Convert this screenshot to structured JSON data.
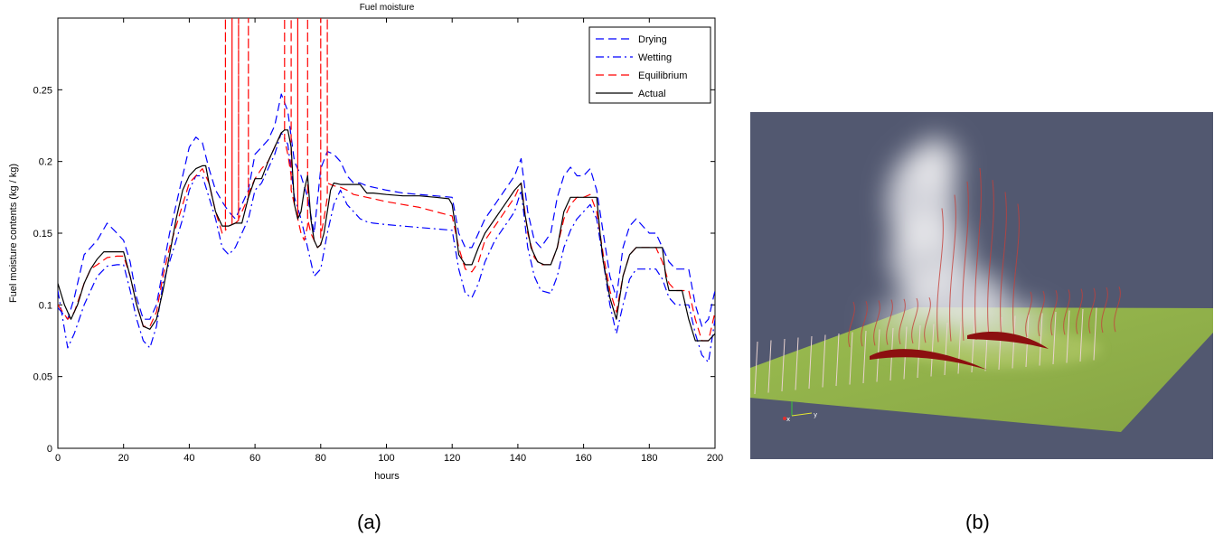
{
  "figure": {
    "panel_a_label": "(a)",
    "panel_b_label": "(b)",
    "axis_triad": {
      "x_label": "x",
      "y_label": "y"
    }
  },
  "colors": {
    "drying": "#0000ff",
    "wetting": "#0000ff",
    "equilibrium": "#ff0000",
    "actual": "#000000",
    "scene_background": "#525870",
    "terrain": "#93b24a",
    "streamline": "#e9b7b0",
    "fire_front": "#8c1010"
  },
  "chart_data": {
    "type": "line",
    "title": "Fuel moisture",
    "xlabel": "hours",
    "ylabel": "Fuel moisture contents (kg / kg)",
    "xlim": [
      0,
      200
    ],
    "ylim": [
      0,
      0.3
    ],
    "xticks": [
      0,
      20,
      40,
      60,
      80,
      100,
      120,
      140,
      160,
      180,
      200
    ],
    "yticks": [
      0,
      0.05,
      0.1,
      0.15,
      0.2,
      0.25
    ],
    "xtick_labels": [
      "0",
      "20",
      "40",
      "60",
      "80",
      "100",
      "120",
      "140",
      "160",
      "180",
      "200"
    ],
    "ytick_labels": [
      "0",
      "0.05",
      "0.1",
      "0.15",
      "0.2",
      "0.25"
    ],
    "grid": false,
    "legend_position": "top-right",
    "series": [
      {
        "name": "Drying",
        "style": "dashed",
        "color": "#0000ff",
        "x": [
          0,
          3,
          5,
          8,
          10,
          12,
          15,
          18,
          20,
          22,
          24,
          26,
          28,
          30,
          32,
          34,
          36,
          38,
          40,
          42,
          44,
          46,
          48,
          50,
          52,
          54,
          56,
          58,
          60,
          62,
          64,
          66,
          68,
          70,
          72,
          74,
          76,
          78,
          80,
          82,
          84,
          86,
          88,
          90,
          92,
          94,
          96,
          100,
          105,
          110,
          115,
          120,
          122,
          124,
          126,
          128,
          130,
          133,
          136,
          139,
          141,
          143,
          145,
          147,
          150,
          152,
          154,
          156,
          158,
          160,
          162,
          164,
          166,
          168,
          170,
          172,
          174,
          176,
          178,
          180,
          182,
          184,
          186,
          188,
          190,
          192,
          194,
          196,
          198,
          200
        ],
        "y": [
          0.098,
          0.09,
          0.105,
          0.135,
          0.14,
          0.145,
          0.157,
          0.15,
          0.145,
          0.13,
          0.105,
          0.09,
          0.09,
          0.1,
          0.125,
          0.15,
          0.17,
          0.19,
          0.21,
          0.217,
          0.213,
          0.195,
          0.18,
          0.172,
          0.165,
          0.16,
          0.17,
          0.18,
          0.205,
          0.21,
          0.215,
          0.225,
          0.247,
          0.235,
          0.2,
          0.19,
          0.175,
          0.15,
          0.195,
          0.207,
          0.205,
          0.2,
          0.19,
          0.185,
          0.185,
          0.183,
          0.182,
          0.18,
          0.178,
          0.177,
          0.176,
          0.175,
          0.15,
          0.14,
          0.14,
          0.15,
          0.16,
          0.17,
          0.18,
          0.19,
          0.202,
          0.165,
          0.145,
          0.14,
          0.15,
          0.175,
          0.19,
          0.196,
          0.19,
          0.19,
          0.195,
          0.18,
          0.15,
          0.12,
          0.105,
          0.14,
          0.155,
          0.16,
          0.155,
          0.15,
          0.15,
          0.14,
          0.13,
          0.125,
          0.125,
          0.125,
          0.1,
          0.085,
          0.09,
          0.11
        ]
      },
      {
        "name": "Wetting",
        "style": "dashdot",
        "color": "#0000ff",
        "x": [
          0,
          3,
          5,
          8,
          10,
          12,
          15,
          18,
          20,
          22,
          24,
          26,
          28,
          30,
          32,
          34,
          36,
          38,
          40,
          42,
          44,
          46,
          48,
          50,
          52,
          54,
          56,
          58,
          60,
          62,
          64,
          66,
          68,
          70,
          72,
          74,
          76,
          78,
          80,
          82,
          84,
          86,
          88,
          90,
          92,
          94,
          96,
          100,
          105,
          110,
          115,
          120,
          122,
          124,
          126,
          128,
          130,
          133,
          136,
          139,
          141,
          143,
          145,
          147,
          150,
          152,
          154,
          156,
          158,
          160,
          162,
          164,
          166,
          168,
          170,
          172,
          174,
          176,
          178,
          180,
          182,
          184,
          186,
          188,
          190,
          192,
          194,
          196,
          198,
          200
        ],
        "y": [
          0.11,
          0.07,
          0.08,
          0.1,
          0.11,
          0.12,
          0.127,
          0.128,
          0.128,
          0.11,
          0.09,
          0.075,
          0.07,
          0.085,
          0.115,
          0.13,
          0.145,
          0.16,
          0.18,
          0.19,
          0.19,
          0.175,
          0.16,
          0.14,
          0.135,
          0.14,
          0.15,
          0.16,
          0.18,
          0.185,
          0.195,
          0.205,
          0.22,
          0.212,
          0.175,
          0.16,
          0.14,
          0.12,
          0.125,
          0.15,
          0.17,
          0.18,
          0.17,
          0.165,
          0.16,
          0.158,
          0.157,
          0.156,
          0.155,
          0.154,
          0.153,
          0.152,
          0.125,
          0.108,
          0.105,
          0.115,
          0.13,
          0.145,
          0.155,
          0.165,
          0.18,
          0.14,
          0.12,
          0.11,
          0.108,
          0.12,
          0.14,
          0.152,
          0.16,
          0.165,
          0.17,
          0.16,
          0.13,
          0.1,
          0.08,
          0.1,
          0.118,
          0.125,
          0.125,
          0.125,
          0.125,
          0.118,
          0.105,
          0.1,
          0.1,
          0.1,
          0.08,
          0.065,
          0.06,
          0.09
        ]
      },
      {
        "name": "Equilibrium",
        "style": "dashed",
        "color": "#ff0000",
        "x": [
          0,
          3,
          5,
          8,
          10,
          12,
          15,
          18,
          20,
          22,
          24,
          26,
          28,
          30,
          32,
          34,
          36,
          38,
          40,
          42,
          44,
          46,
          48,
          50,
          51,
          51,
          51,
          52,
          53,
          53,
          53,
          54,
          55,
          55,
          55,
          56,
          58,
          58,
          58,
          60,
          62,
          64,
          66,
          68,
          69,
          69,
          69,
          70,
          71,
          71,
          71,
          72,
          73,
          73,
          73,
          74,
          75,
          76,
          76,
          76,
          77,
          78,
          79,
          80,
          80,
          80,
          81,
          82,
          82,
          82,
          83,
          84,
          86,
          88,
          90,
          92,
          94,
          96,
          100,
          105,
          110,
          115,
          120,
          122,
          124,
          126,
          128,
          130,
          133,
          136,
          139,
          141,
          143,
          145,
          147,
          150,
          152,
          154,
          156,
          158,
          160,
          162,
          164,
          166,
          168,
          170,
          172,
          174,
          176,
          178,
          180,
          182,
          184,
          186,
          188,
          190,
          192,
          194,
          196,
          198,
          200
        ],
        "y": [
          0.1,
          0.09,
          0.095,
          0.115,
          0.125,
          0.128,
          0.133,
          0.134,
          0.134,
          0.12,
          0.1,
          0.085,
          0.085,
          0.095,
          0.12,
          0.14,
          0.155,
          0.17,
          0.185,
          0.19,
          0.195,
          0.185,
          0.165,
          0.15,
          0.152,
          0.3,
          0.152,
          0.155,
          0.156,
          0.3,
          0.156,
          0.157,
          0.159,
          0.3,
          0.16,
          0.165,
          0.175,
          0.3,
          0.178,
          0.188,
          0.195,
          0.2,
          0.21,
          0.22,
          0.222,
          0.3,
          0.215,
          0.205,
          0.19,
          0.3,
          0.18,
          0.17,
          0.16,
          0.3,
          0.16,
          0.15,
          0.145,
          0.155,
          0.3,
          0.16,
          0.15,
          0.145,
          0.14,
          0.142,
          0.3,
          0.148,
          0.16,
          0.175,
          0.3,
          0.185,
          0.184,
          0.183,
          0.182,
          0.18,
          0.177,
          0.176,
          0.175,
          0.174,
          0.172,
          0.17,
          0.168,
          0.165,
          0.162,
          0.14,
          0.125,
          0.123,
          0.13,
          0.145,
          0.155,
          0.165,
          0.175,
          0.185,
          0.15,
          0.133,
          0.128,
          0.128,
          0.14,
          0.16,
          0.17,
          0.175,
          0.175,
          0.177,
          0.165,
          0.135,
          0.11,
          0.095,
          0.12,
          0.135,
          0.14,
          0.14,
          0.14,
          0.14,
          0.13,
          0.115,
          0.11,
          0.11,
          0.11,
          0.09,
          0.075,
          0.075,
          0.095
        ]
      },
      {
        "name": "Actual",
        "style": "solid",
        "color": "#000000",
        "x": [
          0,
          2,
          4,
          6,
          8,
          10,
          12,
          14,
          16,
          18,
          20,
          22,
          24,
          26,
          28,
          30,
          32,
          34,
          36,
          38,
          40,
          42,
          44,
          45,
          46,
          48,
          50,
          52,
          54,
          56,
          58,
          60,
          62,
          64,
          66,
          68,
          69,
          70,
          71,
          72,
          73,
          74,
          75,
          76,
          77,
          78,
          79,
          80,
          81,
          82,
          83,
          84,
          86,
          88,
          90,
          92,
          94,
          96,
          100,
          105,
          110,
          115,
          119,
          120,
          121,
          122,
          124,
          126,
          128,
          130,
          133,
          136,
          139,
          141,
          142,
          144,
          146,
          148,
          150,
          152,
          154,
          156,
          158,
          160,
          162,
          164,
          165,
          166,
          168,
          170,
          172,
          174,
          176,
          178,
          180,
          182,
          184,
          185,
          186,
          188,
          190,
          192,
          194,
          196,
          198,
          200
        ],
        "y": [
          0.115,
          0.1,
          0.09,
          0.1,
          0.115,
          0.125,
          0.132,
          0.137,
          0.137,
          0.137,
          0.137,
          0.12,
          0.1,
          0.085,
          0.083,
          0.09,
          0.11,
          0.135,
          0.16,
          0.18,
          0.19,
          0.195,
          0.197,
          0.197,
          0.185,
          0.165,
          0.155,
          0.155,
          0.157,
          0.157,
          0.175,
          0.188,
          0.188,
          0.2,
          0.21,
          0.22,
          0.222,
          0.222,
          0.21,
          0.17,
          0.16,
          0.165,
          0.18,
          0.19,
          0.16,
          0.145,
          0.14,
          0.142,
          0.15,
          0.165,
          0.18,
          0.185,
          0.184,
          0.184,
          0.184,
          0.184,
          0.178,
          0.178,
          0.177,
          0.176,
          0.176,
          0.175,
          0.174,
          0.17,
          0.155,
          0.135,
          0.128,
          0.128,
          0.14,
          0.15,
          0.16,
          0.17,
          0.18,
          0.185,
          0.165,
          0.14,
          0.13,
          0.128,
          0.128,
          0.14,
          0.165,
          0.175,
          0.175,
          0.175,
          0.175,
          0.175,
          0.15,
          0.13,
          0.105,
          0.09,
          0.12,
          0.135,
          0.14,
          0.14,
          0.14,
          0.14,
          0.14,
          0.12,
          0.11,
          0.11,
          0.11,
          0.09,
          0.075,
          0.075,
          0.075,
          0.08
        ]
      }
    ]
  }
}
